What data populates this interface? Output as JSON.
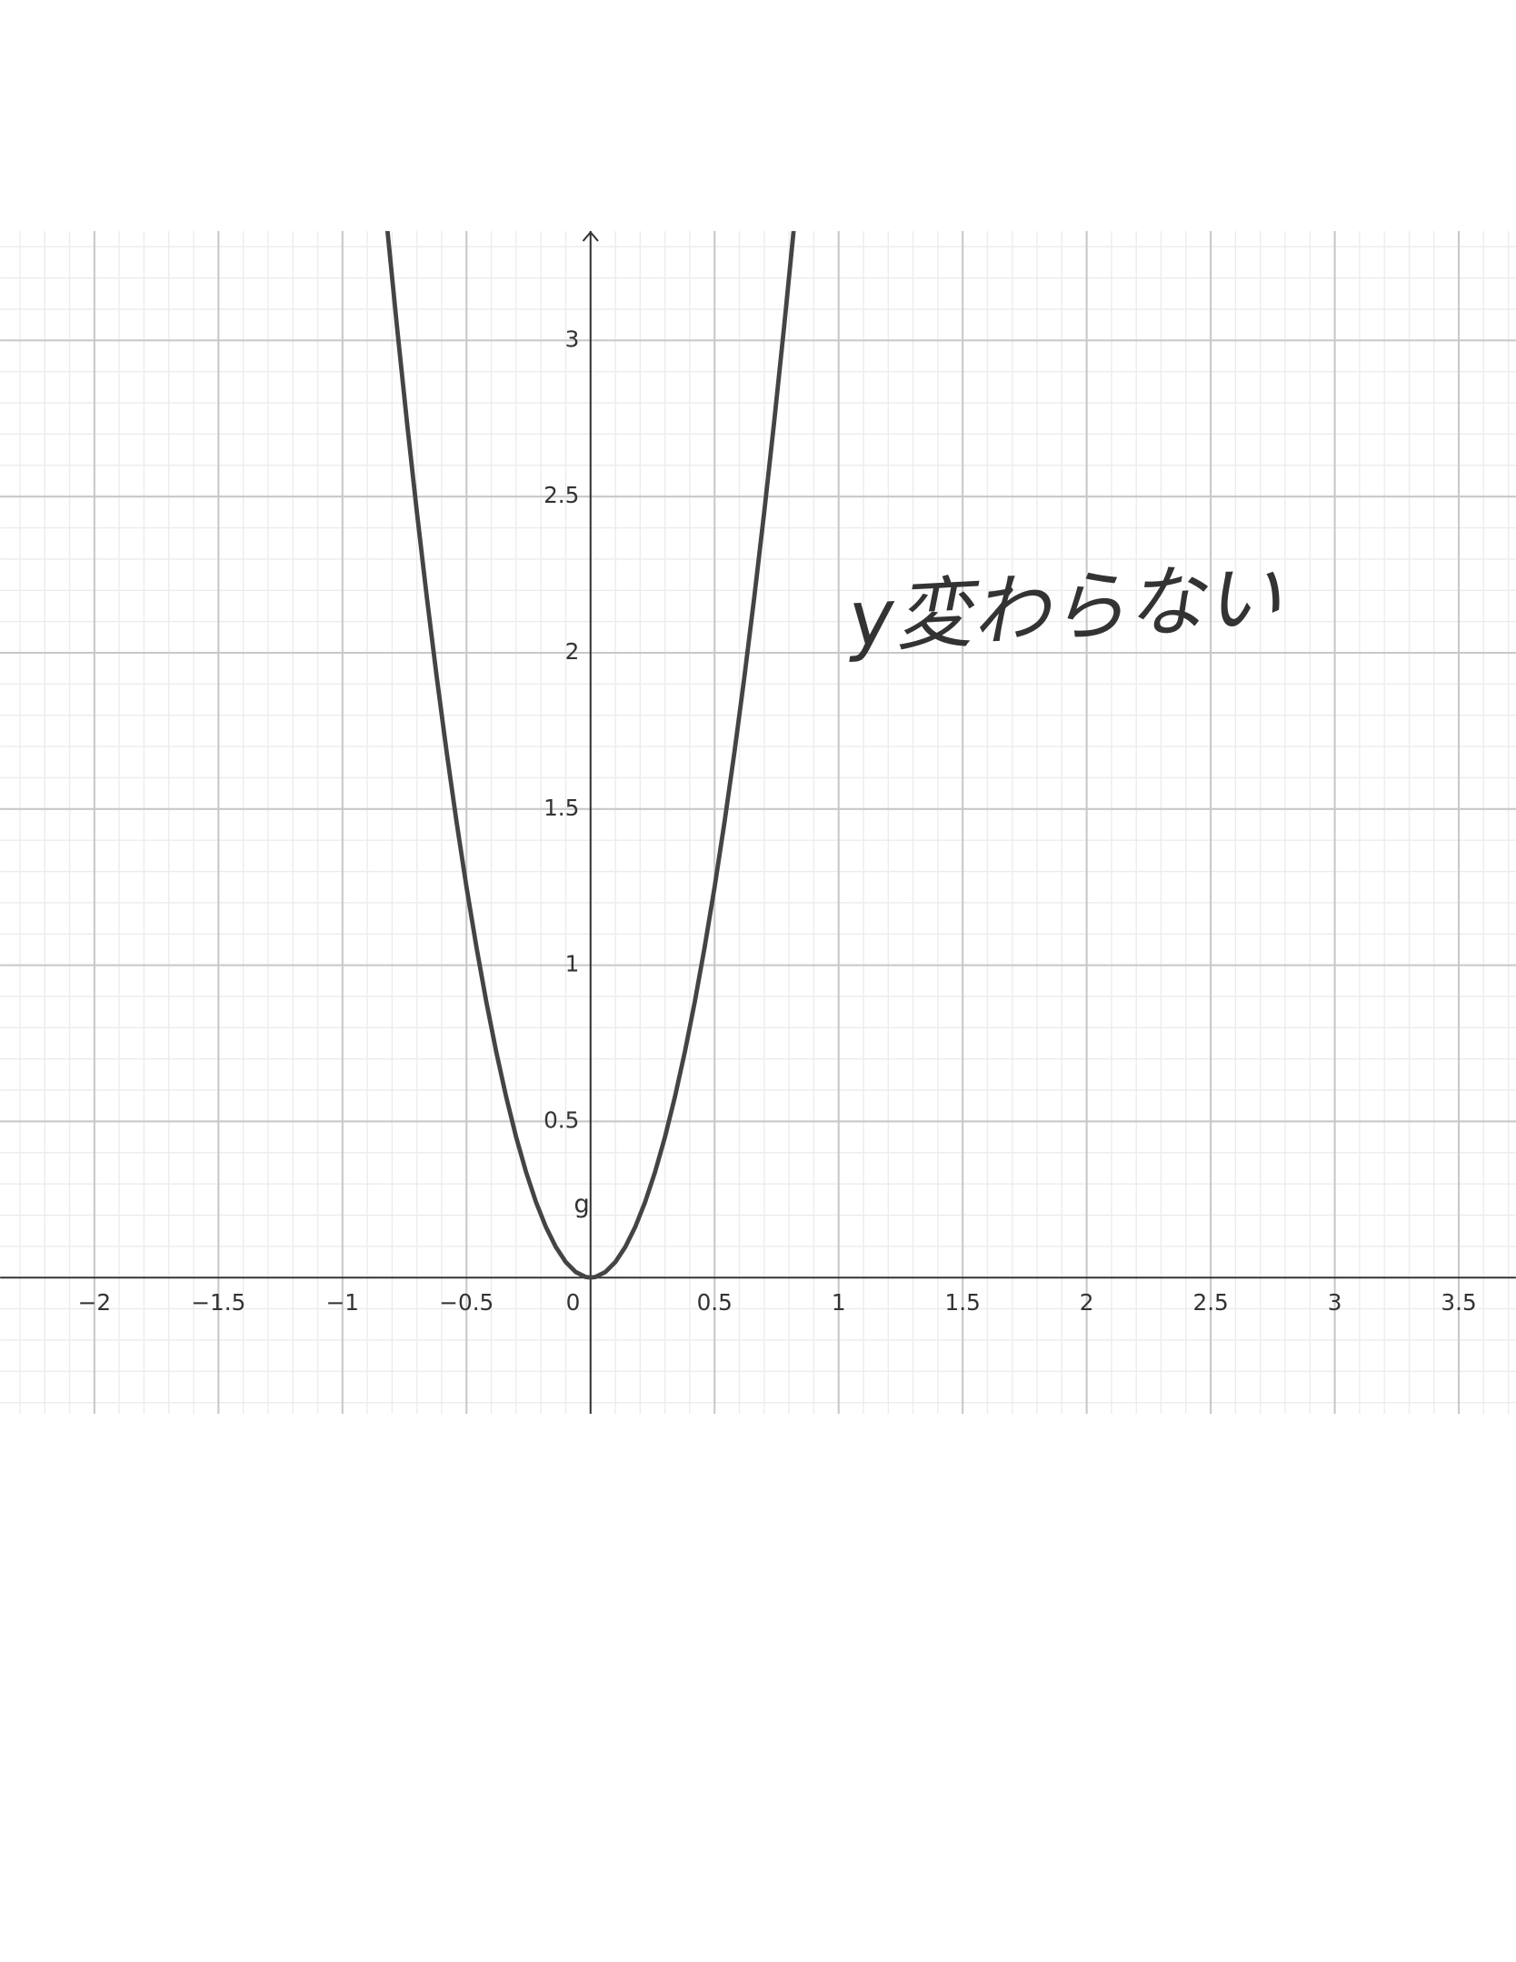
{
  "chart_data": {
    "type": "line",
    "annotation": "y変わらない",
    "x": [
      -0.82,
      -0.78,
      -0.74,
      -0.7,
      -0.66,
      -0.62,
      -0.58,
      -0.54,
      -0.5,
      -0.46,
      -0.42,
      -0.38,
      -0.34,
      -0.3,
      -0.26,
      -0.22,
      -0.18,
      -0.14,
      -0.1,
      -0.06,
      -0.02,
      0,
      0.02,
      0.06,
      0.1,
      0.14,
      0.18,
      0.22,
      0.26,
      0.3,
      0.34,
      0.38,
      0.42,
      0.46,
      0.5,
      0.54,
      0.58,
      0.62,
      0.66,
      0.7,
      0.74,
      0.78,
      0.82
    ],
    "series": [
      {
        "name": "g",
        "color": "#444444",
        "values": [
          3.362,
          3.042,
          2.738,
          2.45,
          2.178,
          1.922,
          1.682,
          1.458,
          1.25,
          1.058,
          0.882,
          0.722,
          0.578,
          0.45,
          0.338,
          0.242,
          0.162,
          0.098,
          0.05,
          0.018,
          0.002,
          0,
          0.002,
          0.018,
          0.05,
          0.098,
          0.162,
          0.242,
          0.338,
          0.45,
          0.578,
          0.722,
          0.882,
          1.058,
          1.25,
          1.458,
          1.682,
          1.922,
          2.178,
          2.45,
          2.738,
          3.042,
          3.362
        ]
      }
    ],
    "xlim": [
      -2.38,
      3.73
    ],
    "ylim": [
      -0.436,
      3.35
    ],
    "xticks": [
      {
        "value": -2,
        "label": "−2"
      },
      {
        "value": -1.5,
        "label": "−1.5"
      },
      {
        "value": -1,
        "label": "−1"
      },
      {
        "value": -0.5,
        "label": "−0.5"
      },
      0,
      0.5,
      1,
      1.5,
      2,
      2.5,
      3,
      3.5
    ],
    "yticks": [
      0.5,
      1,
      1.5,
      2,
      2.5,
      3
    ],
    "grid": true,
    "minor_grid_divisions": 5,
    "annotation_color": "#d81020"
  }
}
